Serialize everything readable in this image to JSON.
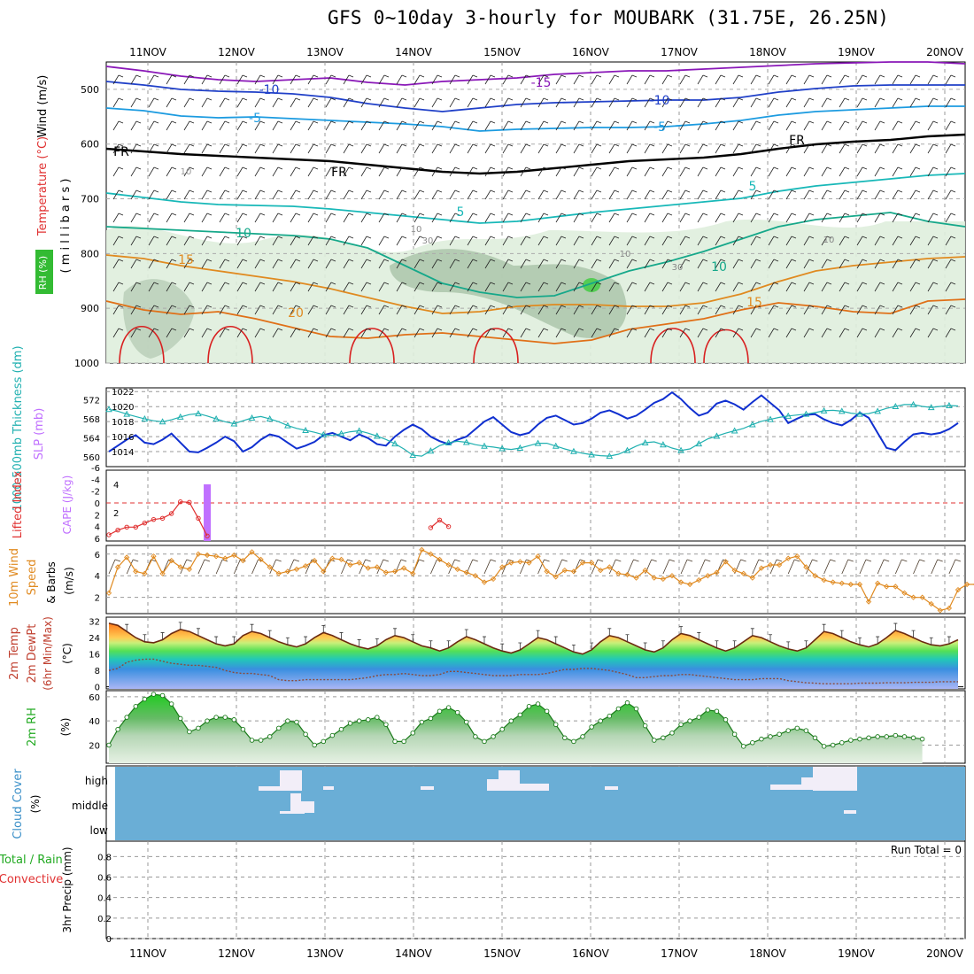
{
  "title": "GFS 0~10day 3-hourly for MOUBARK (31.75E, 26.25N)",
  "colors": {
    "wind": "#000000",
    "temperature": "#e03030",
    "rh": "#22aa22",
    "thickness": "#20b0b0",
    "slp": "#1030d0",
    "lifted": "#e03030",
    "cape": "#c070ff",
    "wind10": "#e08a20",
    "cloud": "#6aaed6",
    "precip_total": "#22aa22",
    "precip_conv": "#e03030"
  },
  "chart_data": {
    "type": "meteogram",
    "title": "GFS 0~10day 3-hourly for MOUBARK (31.75E, 26.25N)",
    "x_labels": [
      "11NOV",
      "12NOV",
      "13NOV",
      "14NOV",
      "15NOV",
      "16NOV",
      "17NOV",
      "18NOV",
      "19NOV",
      "20NOV"
    ],
    "panels": [
      {
        "name": "upper-air",
        "ylabels": {
          "wind": "Wind (m/s)",
          "temperature": "Temperature (°C)",
          "rh": "RH (%)",
          "units": "( m i l l i b a r s )"
        },
        "yticks": [
          500,
          600,
          700,
          800,
          900,
          1000
        ],
        "contour_labels": [
          "-15",
          "-10",
          "-10",
          "-5",
          "-5",
          "FR",
          "FR",
          "FR",
          "5",
          "5",
          "10",
          "10",
          "15",
          "15",
          "20",
          "10",
          "30",
          "10",
          "30",
          "10",
          "10"
        ]
      },
      {
        "name": "thickness-slp",
        "ylabels": {
          "thickness": "1000-500mb Thickness (dm)",
          "slp": "SLP (mb)"
        },
        "yticks_left": [
          560,
          564,
          568,
          572
        ],
        "yticks_right": [
          1014,
          1016,
          1018,
          1020,
          1022
        ],
        "series": [
          {
            "name": "SLP (mb)",
            "values": [
              1014.0,
              1014.8,
              1015.6,
              1016.2,
              1015.2,
              1015.0,
              1015.6,
              1016.4,
              1015.2,
              1014.0,
              1013.9,
              1014.5,
              1015.2,
              1016.0,
              1015.4,
              1014.0,
              1014.6,
              1015.6,
              1016.3,
              1016.0,
              1015.2,
              1014.4,
              1014.8,
              1015.3,
              1016.2,
              1016.5,
              1016.0,
              1015.5,
              1016.3,
              1015.8,
              1015.0,
              1014.8,
              1016.0,
              1016.9,
              1017.6,
              1017.0,
              1016.0,
              1015.4,
              1015.0,
              1015.6,
              1016.0,
              1017.0,
              1018.0,
              1018.6,
              1017.6,
              1016.6,
              1016.2,
              1016.5,
              1017.6,
              1018.5,
              1018.8,
              1018.2,
              1017.6,
              1017.8,
              1018.4,
              1019.2,
              1019.5,
              1019.0,
              1018.4,
              1018.8,
              1019.6,
              1020.5,
              1021.0,
              1021.9,
              1021.0,
              1019.8,
              1018.8,
              1019.2,
              1020.4,
              1020.8,
              1020.3,
              1019.6,
              1020.6,
              1021.5,
              1020.5,
              1019.5,
              1017.8,
              1018.4,
              1018.9,
              1019.0,
              1018.3,
              1017.8,
              1017.5,
              1018.2,
              1019.2,
              1018.5,
              1016.5,
              1014.5,
              1014.2,
              1015.3,
              1016.3,
              1016.5,
              1016.3,
              1016.5,
              1017.0,
              1017.8
            ]
          },
          {
            "name": "1000-500mb Thickness (dm)",
            "values": [
              570.0,
              569.6,
              569.0,
              568.5,
              568.0,
              567.6,
              567.4,
              567.8,
              568.4,
              568.9,
              569.1,
              568.6,
              568.0,
              567.4,
              567.0,
              567.6,
              568.2,
              568.5,
              568.0,
              567.4,
              566.6,
              566.0,
              565.6,
              565.2,
              564.7,
              564.5,
              564.9,
              565.3,
              565.5,
              565.0,
              564.4,
              563.7,
              562.8,
              561.7,
              560.4,
              560.2,
              561.3,
              562.4,
              563.0,
              563.3,
              563.1,
              562.6,
              562.3,
              562.1,
              561.8,
              561.6,
              561.9,
              562.4,
              562.9,
              562.9,
              562.3,
              561.7,
              561.2,
              560.8,
              560.5,
              560.3,
              560.2,
              560.6,
              561.4,
              562.3,
              563.0,
              563.2,
              562.6,
              561.9,
              561.4,
              561.7,
              562.8,
              563.8,
              564.4,
              565.0,
              565.5,
              566.0,
              566.8,
              567.5,
              567.9,
              568.3,
              568.6,
              568.8,
              569.0,
              569.3,
              569.7,
              569.8,
              569.6,
              569.2,
              569.0,
              569.1,
              569.6,
              570.2,
              570.6,
              571.0,
              571.0,
              570.6,
              570.4,
              570.6,
              570.8,
              570.7
            ]
          }
        ]
      },
      {
        "name": "lifted-cape",
        "ylabels": {
          "lifted": "Lifted Index",
          "cape": "CAPE (J/kg)"
        },
        "yticks_left": [
          "6",
          "4",
          "2",
          "0",
          "-2",
          "-4",
          "-6"
        ],
        "yticks_right": [
          "2",
          "4"
        ],
        "series": [
          {
            "name": "Lifted Index",
            "values": [
              5.4,
              4.6,
              4.1,
              4.1,
              3.4,
              2.8,
              2.6,
              1.8,
              -0.2,
              -0.1,
              2.6,
              5.6
            ]
          },
          {
            "name": "Lifted Index (14NOV)",
            "values": [
              4.2,
              2.9,
              4.0
            ]
          },
          {
            "name": "CAPE (J/kg)",
            "values": [
              4.0
            ]
          }
        ]
      },
      {
        "name": "wind10",
        "ylabels": {
          "a": "10m Wind",
          "b": "Speed",
          "c": "& Barbs",
          "units": "(m/s)"
        },
        "yticks": [
          2,
          4,
          6
        ],
        "series": [
          {
            "name": "10m Wind Speed (m/s)",
            "values": [
              2.4,
              4.8,
              5.7,
              4.4,
              4.2,
              5.8,
              4.2,
              5.4,
              4.8,
              4.6,
              6.0,
              5.9,
              5.8,
              5.6,
              5.9,
              5.4,
              6.2,
              5.5,
              4.8,
              4.2,
              4.4,
              4.6,
              4.9,
              5.4,
              4.4,
              5.6,
              5.5,
              5.0,
              5.2,
              4.7,
              4.8,
              4.3,
              4.4,
              4.7,
              4.2,
              6.4,
              6.0,
              5.5,
              5.0,
              4.6,
              4.3,
              4.0,
              3.4,
              3.7,
              4.8,
              5.2,
              5.3,
              5.2,
              5.8,
              4.4,
              3.9,
              4.5,
              4.4,
              5.2,
              5.2,
              4.5,
              4.8,
              4.2,
              4.1,
              3.8,
              4.5,
              3.8,
              3.7,
              4.0,
              3.4,
              3.2,
              3.6,
              4.0,
              4.3,
              5.3,
              4.5,
              4.2,
              3.8,
              4.7,
              5.0,
              5.0,
              5.6,
              5.8,
              4.8,
              4.0,
              3.6,
              3.4,
              3.3,
              3.2,
              3.2,
              1.6,
              3.3,
              3.0,
              3.0,
              2.4,
              2.0,
              2.0,
              1.4,
              0.8,
              1.0,
              2.7,
              3.2,
              3.2,
              2.7,
              1.6
            ]
          }
        ]
      },
      {
        "name": "temp-dewpt",
        "ylabels": {
          "a": "2m Temp",
          "b": "2m DewPt",
          "c": "(6hr Min/Max)",
          "units": "(°C)"
        },
        "yticks": [
          0,
          8,
          16,
          24,
          32
        ],
        "series": [
          {
            "name": "2m Temp (°C)",
            "values": [
              31,
              30,
              27,
              24,
              22,
              21.5,
              23,
              26,
              28,
              27,
              25,
              23,
              21,
              20,
              21,
              25,
              27,
              26,
              24,
              22,
              20.5,
              19.5,
              21,
              24,
              26.5,
              25,
              23,
              21,
              19.5,
              18.5,
              20,
              23,
              25,
              24,
              22,
              20,
              19,
              17.5,
              19,
              22,
              24.5,
              23,
              21,
              19,
              17.5,
              16.5,
              18,
              21,
              24,
              23,
              21,
              19,
              17,
              16,
              18,
              22,
              25,
              24,
              22,
              20,
              18,
              17,
              19,
              23,
              26,
              25,
              23,
              21,
              19,
              17.5,
              19,
              22,
              25,
              24,
              22,
              20,
              18.5,
              17.5,
              19,
              23,
              27,
              26,
              24,
              22,
              20.5,
              19.5,
              21,
              24,
              27.5,
              26,
              24,
              22,
              20.5,
              20,
              21,
              23
            ]
          },
          {
            "name": "2m DewPt (°C)",
            "values": [
              8,
              9,
              12,
              13,
              13.5,
              13.5,
              12.5,
              11.5,
              11,
              10.5,
              10.5,
              10,
              9.5,
              8,
              7,
              6.5,
              6.5,
              6,
              5.5,
              3.5,
              3,
              3,
              3.5,
              3.5,
              3.5,
              3.5,
              3.5,
              3.5,
              4,
              4.5,
              5.5,
              6,
              6,
              6.5,
              6,
              5.5,
              5.5,
              6,
              7.5,
              7.5,
              7,
              6.5,
              6,
              5.5,
              5.5,
              5.5,
              6,
              6,
              6,
              6.5,
              7.5,
              8.5,
              8.5,
              9,
              9,
              8.5,
              8,
              7,
              6,
              4.5,
              4.5,
              5,
              5.5,
              5.5,
              6,
              6,
              5.5,
              5,
              4.5,
              4,
              3.5,
              3.5,
              3.5,
              4,
              4,
              4,
              3,
              2.5,
              2,
              1.8,
              1.5,
              1.5,
              1.5,
              1.5,
              1.8,
              1.8,
              1.8,
              2,
              2,
              2,
              2.2,
              2.2,
              2.2,
              2.5,
              2.5,
              2.5
            ]
          }
        ]
      },
      {
        "name": "rh2m",
        "ylabels": {
          "a": "2m RH",
          "units": "(%)"
        },
        "yticks": [
          20,
          40,
          60
        ],
        "series": [
          {
            "name": "2m RH (%)",
            "values": [
              20,
              33,
              43,
              52,
              58,
              62,
              61,
              54,
              42,
              31,
              34,
              40,
              43,
              43,
              41,
              33,
              24,
              24,
              27,
              34,
              40,
              39,
              29,
              20,
              23,
              28,
              33,
              38,
              40,
              41,
              43,
              37,
              23,
              23,
              30,
              39,
              42,
              48,
              51,
              47,
              39,
              27,
              23,
              27,
              33,
              40,
              45,
              52,
              54,
              48,
              37,
              26,
              23,
              27,
              35,
              40,
              44,
              50,
              55,
              50,
              36,
              24,
              26,
              30,
              37,
              40,
              43,
              49,
              48,
              41,
              29,
              19,
              22,
              25,
              27,
              29,
              32,
              34,
              32,
              26,
              19,
              20,
              22,
              24,
              25,
              26,
              27,
              27,
              28,
              27,
              26,
              25
            ]
          }
        ]
      },
      {
        "name": "cloud",
        "ylabels": {
          "a": "Cloud Cover",
          "units": "(%)"
        },
        "levels": [
          "high",
          "middle",
          "low"
        ]
      },
      {
        "name": "precip",
        "ylabels": {
          "a": "Total / Rain",
          "b": "Convective",
          "units": "3hr Precip (mm)"
        },
        "yticks": [
          "0",
          "0.2",
          "0.4",
          "0.6",
          "0.8"
        ],
        "run_total": "Run Total = 0"
      }
    ]
  }
}
